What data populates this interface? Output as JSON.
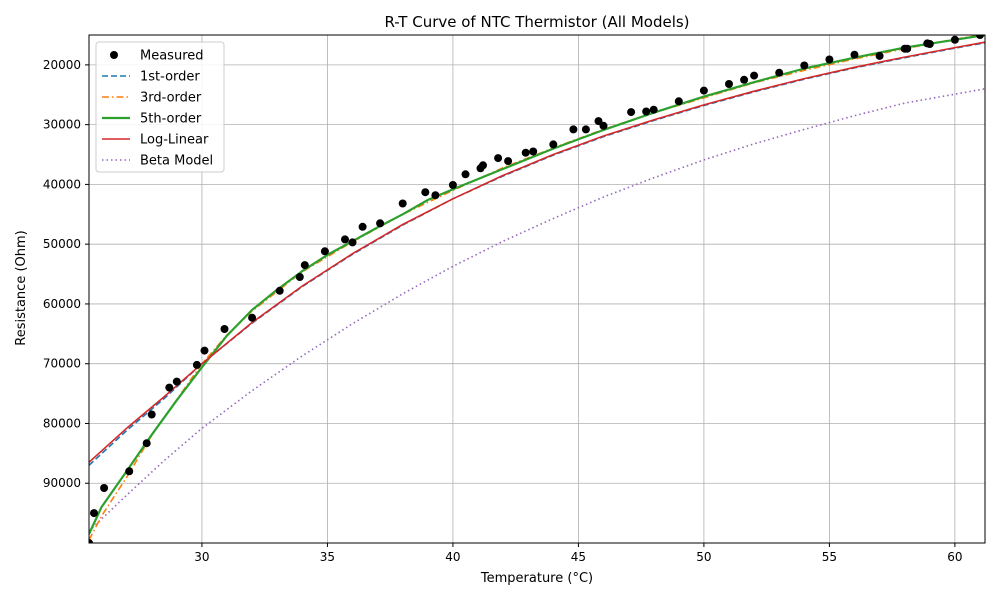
{
  "chart_data": {
    "type": "line",
    "title": "R-T Curve of NTC Thermistor (All Models)",
    "xlabel": "Temperature (°C)",
    "ylabel": "Resistance (Ohm)",
    "xlim": [
      25.5,
      61.2
    ],
    "ylim": [
      15000,
      100000
    ],
    "y_inverted": true,
    "grid": true,
    "legend_position": "top-left",
    "xticks": [
      30,
      35,
      40,
      45,
      50,
      55,
      60
    ],
    "yticks": [
      20000,
      30000,
      40000,
      50000,
      60000,
      70000,
      80000,
      90000
    ],
    "measured": {
      "name": "Measured",
      "color": "#000000",
      "x": [
        25.5,
        25.7,
        26.1,
        27.1,
        27.8,
        28.0,
        28.7,
        29.0,
        29.8,
        30.1,
        30.9,
        32.0,
        33.1,
        33.9,
        34.1,
        34.9,
        35.7,
        36.0,
        36.4,
        37.1,
        38.0,
        38.9,
        39.3,
        40.0,
        40.5,
        41.1,
        41.2,
        41.8,
        42.2,
        42.9,
        43.2,
        44.0,
        44.8,
        45.3,
        45.8,
        46.0,
        47.1,
        47.7,
        48.0,
        49.0,
        50.0,
        51.0,
        51.6,
        52.0,
        53.0,
        54.0,
        55.0,
        56.0,
        57.0,
        58.0,
        58.1,
        58.9,
        59.0,
        60.0,
        61.0
      ],
      "y": [
        100000,
        95000,
        90800,
        88000,
        83300,
        78500,
        74000,
        73000,
        70200,
        67800,
        64200,
        62300,
        57800,
        55500,
        53500,
        51200,
        49200,
        49700,
        47100,
        46500,
        43200,
        41300,
        41800,
        40100,
        38300,
        37300,
        36800,
        35600,
        36100,
        34700,
        34500,
        33300,
        30800,
        30800,
        29400,
        30200,
        27900,
        27800,
        27500,
        26100,
        24300,
        23200,
        22500,
        21800,
        21300,
        20100,
        19100,
        18300,
        18500,
        17300,
        17300,
        16400,
        16500,
        15800,
        15000
      ]
    },
    "series": [
      {
        "name": "1st-order",
        "color": "#1f77b4",
        "dash": "6,3",
        "x": [
          25.5,
          27,
          28.5,
          30,
          32,
          34,
          36,
          38,
          40,
          42,
          44,
          46,
          48,
          50,
          52,
          54,
          56,
          58,
          60,
          61.2
        ],
        "y": [
          87000,
          81200,
          75800,
          70000,
          63200,
          57100,
          51700,
          46800,
          42400,
          38600,
          35100,
          32000,
          29300,
          26800,
          24500,
          22400,
          20500,
          18800,
          17200,
          16300
        ]
      },
      {
        "name": "3rd-order",
        "color": "#ff7f0e",
        "dash": "7,3,1.5,3",
        "x": [
          25.5,
          26,
          27,
          28,
          29,
          30,
          31,
          32,
          34,
          36,
          38,
          40,
          42,
          44,
          46,
          48,
          50,
          52,
          54,
          56,
          58,
          60,
          61.2
        ],
        "y": [
          99500,
          95500,
          89000,
          82000,
          76000,
          70000,
          65200,
          61200,
          54600,
          49600,
          45000,
          41000,
          37200,
          33900,
          30800,
          28000,
          25500,
          23000,
          20900,
          19000,
          17300,
          15700,
          14900
        ]
      },
      {
        "name": "5th-order",
        "color": "#2ca02c",
        "dash": "",
        "x": [
          25.5,
          26,
          27,
          28,
          29,
          30,
          31,
          32,
          33,
          34,
          35,
          36,
          37,
          38,
          39,
          40,
          42,
          44,
          46,
          48,
          50,
          52,
          54,
          56,
          58,
          60,
          61.2
        ],
        "y": [
          98500,
          94000,
          88000,
          81900,
          76100,
          70600,
          65300,
          61000,
          57600,
          54500,
          51800,
          49500,
          47200,
          45000,
          42600,
          40800,
          37400,
          34000,
          30900,
          28000,
          25300,
          22900,
          20600,
          18800,
          17100,
          15800,
          15000
        ]
      },
      {
        "name": "Log-Linear",
        "color": "#d62728",
        "dash": "",
        "x": [
          25.5,
          27,
          28.5,
          30,
          32,
          34,
          36,
          38,
          40,
          42,
          44,
          46,
          48,
          50,
          52,
          54,
          56,
          58,
          60,
          61.2
        ],
        "y": [
          86500,
          80800,
          75500,
          70000,
          63100,
          57000,
          51600,
          46700,
          42400,
          38500,
          35000,
          31900,
          29200,
          26700,
          24400,
          22300,
          20400,
          18700,
          17100,
          16200
        ]
      },
      {
        "name": "Beta Model",
        "color": "#9467bd",
        "dash": "1.5,3",
        "x": [
          25.5,
          27,
          28.5,
          30,
          32,
          34,
          36,
          38,
          40,
          42,
          44,
          46,
          48,
          50,
          52,
          54,
          56,
          58,
          60,
          61.2
        ],
        "y": [
          98000,
          92000,
          86200,
          80800,
          74500,
          68700,
          63300,
          58300,
          53700,
          49500,
          45700,
          42100,
          38900,
          35900,
          33200,
          30800,
          28500,
          26400,
          24900,
          24000
        ]
      }
    ]
  }
}
